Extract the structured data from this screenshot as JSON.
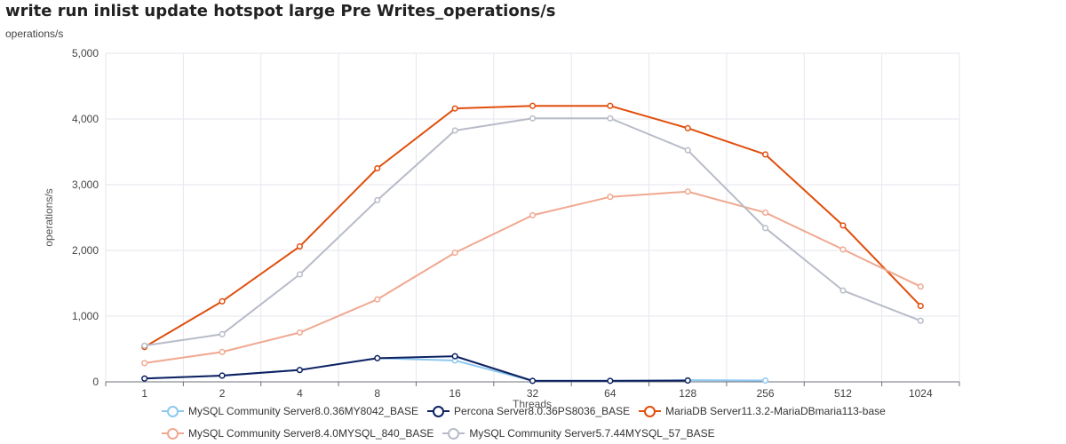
{
  "chart_data": {
    "type": "line",
    "title": "write run inlist update hotspot large Pre Writes_operations/s",
    "subtitle": "operations/s",
    "xlabel": "Threads",
    "ylabel": "operations/s",
    "ylim": [
      0,
      5000
    ],
    "yticks": [
      "0",
      "1,000",
      "2,000",
      "3,000",
      "4,000",
      "5,000"
    ],
    "categories": [
      "1",
      "2",
      "4",
      "8",
      "16",
      "32",
      "64",
      "128",
      "256",
      "512",
      "1024"
    ],
    "grid": true,
    "legend_position": "bottom",
    "series": [
      {
        "name": "MySQL Community Server8.0.36MY8042_BASE",
        "color": "#8cc8f0",
        "values": [
          50,
          95,
          180,
          360,
          325,
          15,
          15,
          25,
          20,
          null,
          null
        ]
      },
      {
        "name": "Percona Server8.0.36PS8036_BASE",
        "color": "#0e2160",
        "values": [
          50,
          95,
          180,
          360,
          390,
          15,
          15,
          20,
          null,
          null,
          null
        ]
      },
      {
        "name": "MariaDB Server11.3.2-MariaDBmaria113-base",
        "color": "#e04e0c",
        "values": [
          530,
          1225,
          2060,
          3250,
          4160,
          4200,
          4200,
          3860,
          3460,
          2380,
          1155
        ]
      },
      {
        "name": "MySQL Community Server8.4.0MYSQL_840_BASE",
        "color": "#f0a890",
        "values": [
          285,
          455,
          750,
          1255,
          1965,
          2535,
          2815,
          2895,
          2575,
          2015,
          1450
        ]
      },
      {
        "name": "MySQL Community Server5.7.44MYSQL_57_BASE",
        "color": "#b8bcc8",
        "values": [
          550,
          725,
          1635,
          2765,
          3825,
          4010,
          4010,
          3525,
          2340,
          1390,
          930
        ]
      }
    ]
  }
}
